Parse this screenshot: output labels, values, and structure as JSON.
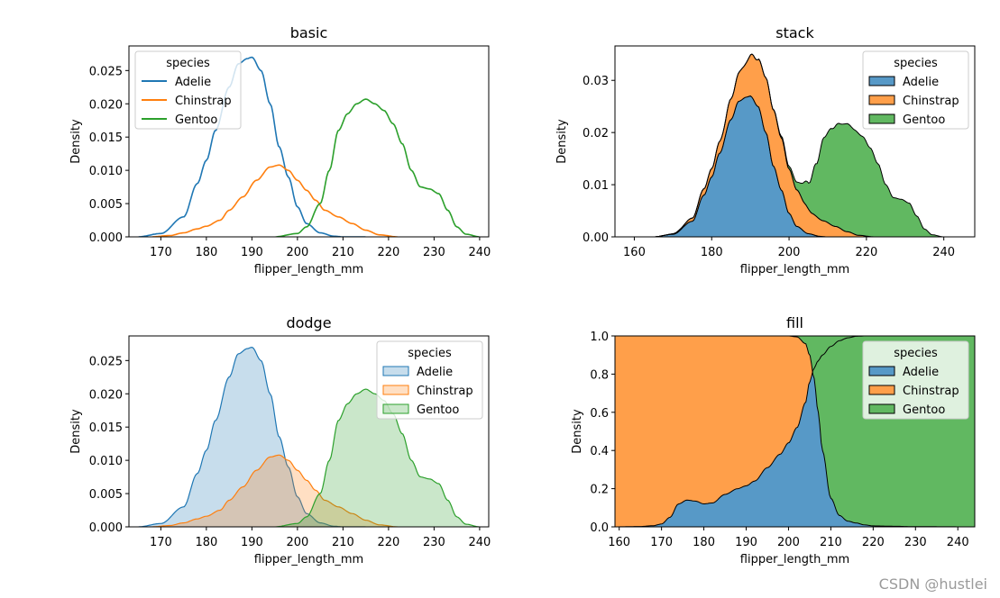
{
  "colors": {
    "adelie": "#1f77b4",
    "chinstrap": "#ff7f0e",
    "gentoo": "#2ca02c"
  },
  "watermark": "CSDN @hustlei",
  "chart_data": [
    {
      "id": "basic",
      "type": "line",
      "mode": "basic",
      "title": "basic",
      "xlabel": "flipper_length_mm",
      "ylabel": "Density",
      "xlim": [
        163,
        242
      ],
      "ylim": [
        0,
        0.0287
      ],
      "xticks": [
        170,
        180,
        190,
        200,
        210,
        220,
        230,
        240
      ],
      "yticks": [
        0,
        0.005,
        0.01,
        0.015,
        0.02,
        0.025
      ],
      "ytick_labels": [
        "0.000",
        "0.005",
        "0.010",
        "0.015",
        "0.020",
        "0.025"
      ],
      "legend": {
        "title": "species",
        "location": "upper left",
        "style": "line"
      },
      "series": [
        {
          "name": "Adelie",
          "color": "#1f77b4",
          "x": [
            165,
            170,
            175,
            178,
            180,
            182,
            185,
            187,
            189,
            190,
            192,
            194,
            196,
            198,
            200,
            202,
            205,
            208,
            210,
            212,
            215
          ],
          "y": [
            0.0,
            0.0005,
            0.003,
            0.008,
            0.0115,
            0.016,
            0.0225,
            0.026,
            0.0268,
            0.027,
            0.025,
            0.02,
            0.0135,
            0.009,
            0.0045,
            0.002,
            0.0006,
            0.0001,
            0,
            0,
            0
          ]
        },
        {
          "name": "Chinstrap",
          "color": "#ff7f0e",
          "x": [
            168,
            172,
            175,
            178,
            180,
            183,
            185,
            188,
            191,
            194,
            196,
            198,
            200,
            202,
            204,
            206,
            209,
            212,
            215,
            218,
            222
          ],
          "y": [
            0.0,
            0.0002,
            0.0006,
            0.0012,
            0.0016,
            0.0025,
            0.004,
            0.006,
            0.0085,
            0.0105,
            0.0108,
            0.01,
            0.0085,
            0.007,
            0.0055,
            0.004,
            0.003,
            0.002,
            0.001,
            0.0003,
            0.0
          ]
        },
        {
          "name": "Gentoo",
          "color": "#2ca02c",
          "x": [
            195,
            200,
            202,
            205,
            207,
            209,
            211,
            213,
            215,
            217,
            219,
            221,
            223,
            225,
            227,
            229,
            231,
            233,
            235,
            237,
            240
          ],
          "y": [
            0.0,
            0.0005,
            0.0015,
            0.005,
            0.01,
            0.016,
            0.0185,
            0.02,
            0.0207,
            0.02,
            0.019,
            0.017,
            0.014,
            0.01,
            0.0075,
            0.0072,
            0.0065,
            0.004,
            0.0015,
            0.0004,
            0.0
          ]
        }
      ]
    },
    {
      "id": "stack",
      "type": "area",
      "mode": "stack",
      "title": "stack",
      "xlabel": "flipper_length_mm",
      "ylabel": "Density",
      "xlim": [
        155,
        248
      ],
      "ylim": [
        0,
        0.0366
      ],
      "xticks": [
        160,
        180,
        200,
        220,
        240
      ],
      "yticks": [
        0,
        0.01,
        0.02,
        0.03
      ],
      "ytick_labels": [
        "0.00",
        "0.01",
        "0.02",
        "0.03"
      ],
      "legend": {
        "title": "species",
        "location": "upper right",
        "style": "patch"
      },
      "series": [
        {
          "name": "Adelie",
          "color": "#1f77b4",
          "x": [
            165,
            170,
            175,
            178,
            180,
            182,
            185,
            187,
            189,
            190,
            192,
            194,
            196,
            198,
            200,
            202,
            205,
            208,
            210,
            212,
            215
          ],
          "y": [
            0.0,
            0.0005,
            0.003,
            0.008,
            0.0115,
            0.016,
            0.0225,
            0.026,
            0.0268,
            0.027,
            0.025,
            0.02,
            0.0135,
            0.009,
            0.0045,
            0.002,
            0.0006,
            0.0001,
            0,
            0,
            0
          ]
        },
        {
          "name": "Chinstrap",
          "color": "#ff7f0e",
          "x": [
            168,
            172,
            175,
            178,
            180,
            183,
            185,
            188,
            191,
            194,
            196,
            198,
            200,
            202,
            204,
            206,
            209,
            212,
            215,
            218,
            222
          ],
          "y": [
            0.0,
            0.0002,
            0.0006,
            0.0012,
            0.0016,
            0.0025,
            0.004,
            0.006,
            0.0085,
            0.0105,
            0.0108,
            0.01,
            0.0085,
            0.007,
            0.0055,
            0.004,
            0.003,
            0.002,
            0.001,
            0.0003,
            0.0
          ]
        },
        {
          "name": "Gentoo",
          "color": "#2ca02c",
          "x": [
            195,
            200,
            202,
            205,
            207,
            209,
            211,
            213,
            215,
            217,
            219,
            221,
            223,
            225,
            227,
            229,
            231,
            233,
            235,
            237,
            240
          ],
          "y": [
            0.0,
            0.0005,
            0.0015,
            0.005,
            0.01,
            0.016,
            0.0185,
            0.02,
            0.0207,
            0.02,
            0.019,
            0.017,
            0.014,
            0.01,
            0.0075,
            0.0072,
            0.0065,
            0.004,
            0.0015,
            0.0004,
            0.0
          ]
        }
      ]
    },
    {
      "id": "dodge",
      "type": "area",
      "mode": "dodge",
      "title": "dodge",
      "xlabel": "flipper_length_mm",
      "ylabel": "Density",
      "xlim": [
        163,
        242
      ],
      "ylim": [
        0,
        0.0287
      ],
      "xticks": [
        170,
        180,
        190,
        200,
        210,
        220,
        230,
        240
      ],
      "yticks": [
        0,
        0.005,
        0.01,
        0.015,
        0.02,
        0.025
      ],
      "ytick_labels": [
        "0.000",
        "0.005",
        "0.010",
        "0.015",
        "0.020",
        "0.025"
      ],
      "legend": {
        "title": "species",
        "location": "upper right",
        "style": "patch-light"
      },
      "series": [
        {
          "name": "Adelie",
          "color": "#1f77b4",
          "x": [
            165,
            170,
            175,
            178,
            180,
            182,
            185,
            187,
            189,
            190,
            192,
            194,
            196,
            198,
            200,
            202,
            205,
            208,
            210,
            212,
            215
          ],
          "y": [
            0.0,
            0.0005,
            0.003,
            0.008,
            0.0115,
            0.016,
            0.0225,
            0.026,
            0.0268,
            0.027,
            0.025,
            0.02,
            0.0135,
            0.009,
            0.0045,
            0.002,
            0.0006,
            0.0001,
            0,
            0,
            0
          ]
        },
        {
          "name": "Chinstrap",
          "color": "#ff7f0e",
          "x": [
            168,
            172,
            175,
            178,
            180,
            183,
            185,
            188,
            191,
            194,
            196,
            198,
            200,
            202,
            204,
            206,
            209,
            212,
            215,
            218,
            222
          ],
          "y": [
            0.0,
            0.0002,
            0.0006,
            0.0012,
            0.0016,
            0.0025,
            0.004,
            0.006,
            0.0085,
            0.0105,
            0.0108,
            0.01,
            0.0085,
            0.007,
            0.0055,
            0.004,
            0.003,
            0.002,
            0.001,
            0.0003,
            0.0
          ]
        },
        {
          "name": "Gentoo",
          "color": "#2ca02c",
          "x": [
            195,
            200,
            202,
            205,
            207,
            209,
            211,
            213,
            215,
            217,
            219,
            221,
            223,
            225,
            227,
            229,
            231,
            233,
            235,
            237,
            240
          ],
          "y": [
            0.0,
            0.0005,
            0.0015,
            0.005,
            0.01,
            0.016,
            0.0185,
            0.02,
            0.0207,
            0.02,
            0.019,
            0.017,
            0.014,
            0.01,
            0.0075,
            0.0072,
            0.0065,
            0.004,
            0.0015,
            0.0004,
            0.0
          ]
        }
      ]
    },
    {
      "id": "fill",
      "type": "area",
      "mode": "fill",
      "title": "fill",
      "xlabel": "flipper_length_mm",
      "ylabel": "Density",
      "xlim": [
        159,
        244
      ],
      "ylim": [
        0,
        1.0
      ],
      "xticks": [
        160,
        170,
        180,
        190,
        200,
        210,
        220,
        230,
        240
      ],
      "yticks": [
        0,
        0.2,
        0.4,
        0.6,
        0.8,
        1.0
      ],
      "ytick_labels": [
        "0.0",
        "0.2",
        "0.4",
        "0.6",
        "0.8",
        "1.0"
      ],
      "legend": {
        "title": "species",
        "location": "upper right",
        "style": "patch"
      },
      "series": [
        {
          "name": "Adelie",
          "color": "#1f77b4"
        },
        {
          "name": "Chinstrap",
          "color": "#ff7f0e"
        },
        {
          "name": "Gentoo",
          "color": "#2ca02c"
        }
      ],
      "boundaries": {
        "x": [
          159,
          165,
          168,
          170,
          172,
          174,
          176,
          178,
          180,
          182,
          185,
          188,
          190,
          192,
          195,
          198,
          200,
          202,
          204,
          205,
          206,
          207,
          208,
          210,
          212,
          214,
          216,
          218,
          220,
          225,
          230,
          244
        ],
        "adelie_top": [
          0.0,
          0.002,
          0.006,
          0.015,
          0.05,
          0.12,
          0.14,
          0.135,
          0.12,
          0.125,
          0.17,
          0.2,
          0.215,
          0.24,
          0.31,
          0.38,
          0.44,
          0.52,
          0.65,
          0.76,
          0.83,
          0.87,
          0.9,
          0.945,
          0.975,
          0.99,
          0.998,
          1.0,
          1.0,
          1.0,
          1.0,
          1.0
        ],
        "chinstrap_top": [
          1.0,
          1.0,
          1.0,
          1.0,
          1.0,
          1.0,
          1.0,
          1.0,
          1.0,
          1.0,
          1.0,
          1.0,
          1.0,
          1.0,
          1.0,
          1.0,
          1.0,
          0.995,
          0.96,
          0.9,
          0.78,
          0.6,
          0.4,
          0.15,
          0.06,
          0.03,
          0.02,
          0.01,
          0.005,
          0.003,
          0.001,
          0.0
        ]
      }
    }
  ]
}
